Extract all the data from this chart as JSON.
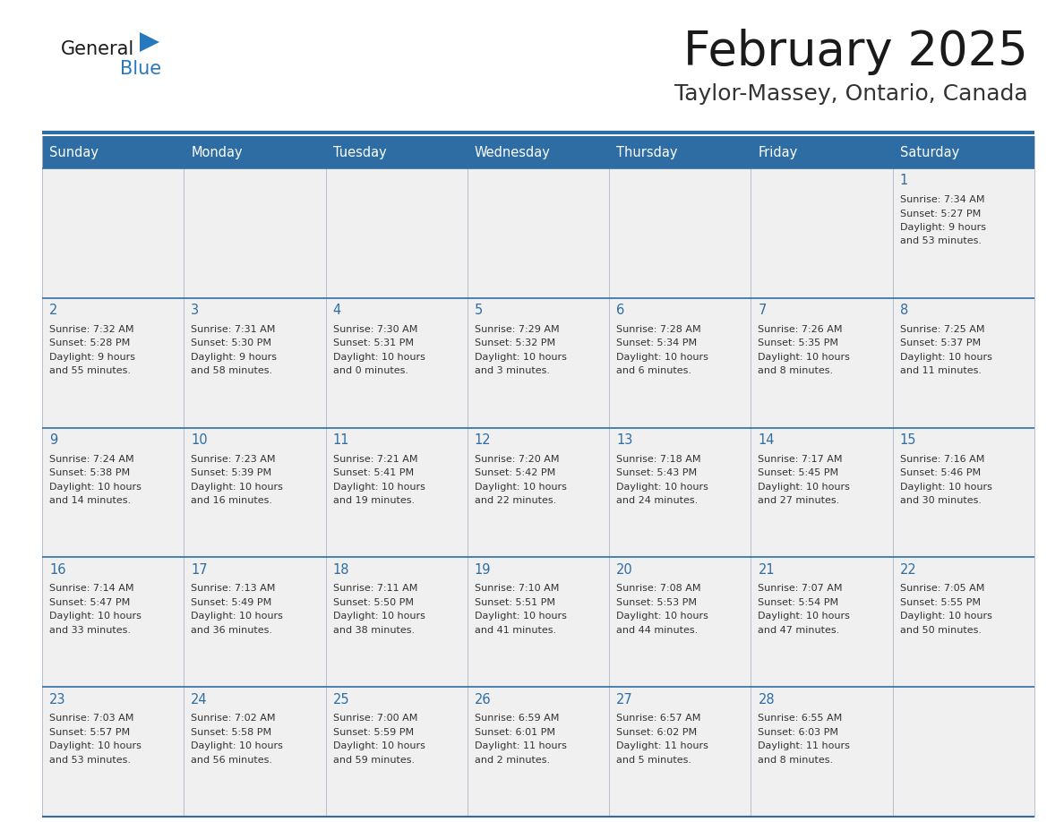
{
  "title": "February 2025",
  "subtitle": "Taylor-Massey, Ontario, Canada",
  "header_bg": "#2E6DA4",
  "header_text": "#FFFFFF",
  "cell_bg": "#F0F0F0",
  "border_color": "#2E6DA4",
  "title_color": "#1a1a1a",
  "subtitle_color": "#333333",
  "day_num_color": "#2E6DA4",
  "cell_text_color": "#333333",
  "logo_black": "#1a1a1a",
  "logo_blue": "#2878BE",
  "triangle_blue": "#2878BE",
  "days_of_week": [
    "Sunday",
    "Monday",
    "Tuesday",
    "Wednesday",
    "Thursday",
    "Friday",
    "Saturday"
  ],
  "weeks": [
    [
      null,
      null,
      null,
      null,
      null,
      null,
      {
        "day": 1,
        "sunrise": "7:34 AM",
        "sunset": "5:27 PM",
        "daylight_hours": 9,
        "daylight_minutes": 53
      }
    ],
    [
      {
        "day": 2,
        "sunrise": "7:32 AM",
        "sunset": "5:28 PM",
        "daylight_hours": 9,
        "daylight_minutes": 55
      },
      {
        "day": 3,
        "sunrise": "7:31 AM",
        "sunset": "5:30 PM",
        "daylight_hours": 9,
        "daylight_minutes": 58
      },
      {
        "day": 4,
        "sunrise": "7:30 AM",
        "sunset": "5:31 PM",
        "daylight_hours": 10,
        "daylight_minutes": 0
      },
      {
        "day": 5,
        "sunrise": "7:29 AM",
        "sunset": "5:32 PM",
        "daylight_hours": 10,
        "daylight_minutes": 3
      },
      {
        "day": 6,
        "sunrise": "7:28 AM",
        "sunset": "5:34 PM",
        "daylight_hours": 10,
        "daylight_minutes": 6
      },
      {
        "day": 7,
        "sunrise": "7:26 AM",
        "sunset": "5:35 PM",
        "daylight_hours": 10,
        "daylight_minutes": 8
      },
      {
        "day": 8,
        "sunrise": "7:25 AM",
        "sunset": "5:37 PM",
        "daylight_hours": 10,
        "daylight_minutes": 11
      }
    ],
    [
      {
        "day": 9,
        "sunrise": "7:24 AM",
        "sunset": "5:38 PM",
        "daylight_hours": 10,
        "daylight_minutes": 14
      },
      {
        "day": 10,
        "sunrise": "7:23 AM",
        "sunset": "5:39 PM",
        "daylight_hours": 10,
        "daylight_minutes": 16
      },
      {
        "day": 11,
        "sunrise": "7:21 AM",
        "sunset": "5:41 PM",
        "daylight_hours": 10,
        "daylight_minutes": 19
      },
      {
        "day": 12,
        "sunrise": "7:20 AM",
        "sunset": "5:42 PM",
        "daylight_hours": 10,
        "daylight_minutes": 22
      },
      {
        "day": 13,
        "sunrise": "7:18 AM",
        "sunset": "5:43 PM",
        "daylight_hours": 10,
        "daylight_minutes": 24
      },
      {
        "day": 14,
        "sunrise": "7:17 AM",
        "sunset": "5:45 PM",
        "daylight_hours": 10,
        "daylight_minutes": 27
      },
      {
        "day": 15,
        "sunrise": "7:16 AM",
        "sunset": "5:46 PM",
        "daylight_hours": 10,
        "daylight_minutes": 30
      }
    ],
    [
      {
        "day": 16,
        "sunrise": "7:14 AM",
        "sunset": "5:47 PM",
        "daylight_hours": 10,
        "daylight_minutes": 33
      },
      {
        "day": 17,
        "sunrise": "7:13 AM",
        "sunset": "5:49 PM",
        "daylight_hours": 10,
        "daylight_minutes": 36
      },
      {
        "day": 18,
        "sunrise": "7:11 AM",
        "sunset": "5:50 PM",
        "daylight_hours": 10,
        "daylight_minutes": 38
      },
      {
        "day": 19,
        "sunrise": "7:10 AM",
        "sunset": "5:51 PM",
        "daylight_hours": 10,
        "daylight_minutes": 41
      },
      {
        "day": 20,
        "sunrise": "7:08 AM",
        "sunset": "5:53 PM",
        "daylight_hours": 10,
        "daylight_minutes": 44
      },
      {
        "day": 21,
        "sunrise": "7:07 AM",
        "sunset": "5:54 PM",
        "daylight_hours": 10,
        "daylight_minutes": 47
      },
      {
        "day": 22,
        "sunrise": "7:05 AM",
        "sunset": "5:55 PM",
        "daylight_hours": 10,
        "daylight_minutes": 50
      }
    ],
    [
      {
        "day": 23,
        "sunrise": "7:03 AM",
        "sunset": "5:57 PM",
        "daylight_hours": 10,
        "daylight_minutes": 53
      },
      {
        "day": 24,
        "sunrise": "7:02 AM",
        "sunset": "5:58 PM",
        "daylight_hours": 10,
        "daylight_minutes": 56
      },
      {
        "day": 25,
        "sunrise": "7:00 AM",
        "sunset": "5:59 PM",
        "daylight_hours": 10,
        "daylight_minutes": 59
      },
      {
        "day": 26,
        "sunrise": "6:59 AM",
        "sunset": "6:01 PM",
        "daylight_hours": 11,
        "daylight_minutes": 2
      },
      {
        "day": 27,
        "sunrise": "6:57 AM",
        "sunset": "6:02 PM",
        "daylight_hours": 11,
        "daylight_minutes": 5
      },
      {
        "day": 28,
        "sunrise": "6:55 AM",
        "sunset": "6:03 PM",
        "daylight_hours": 11,
        "daylight_minutes": 8
      },
      null
    ]
  ]
}
